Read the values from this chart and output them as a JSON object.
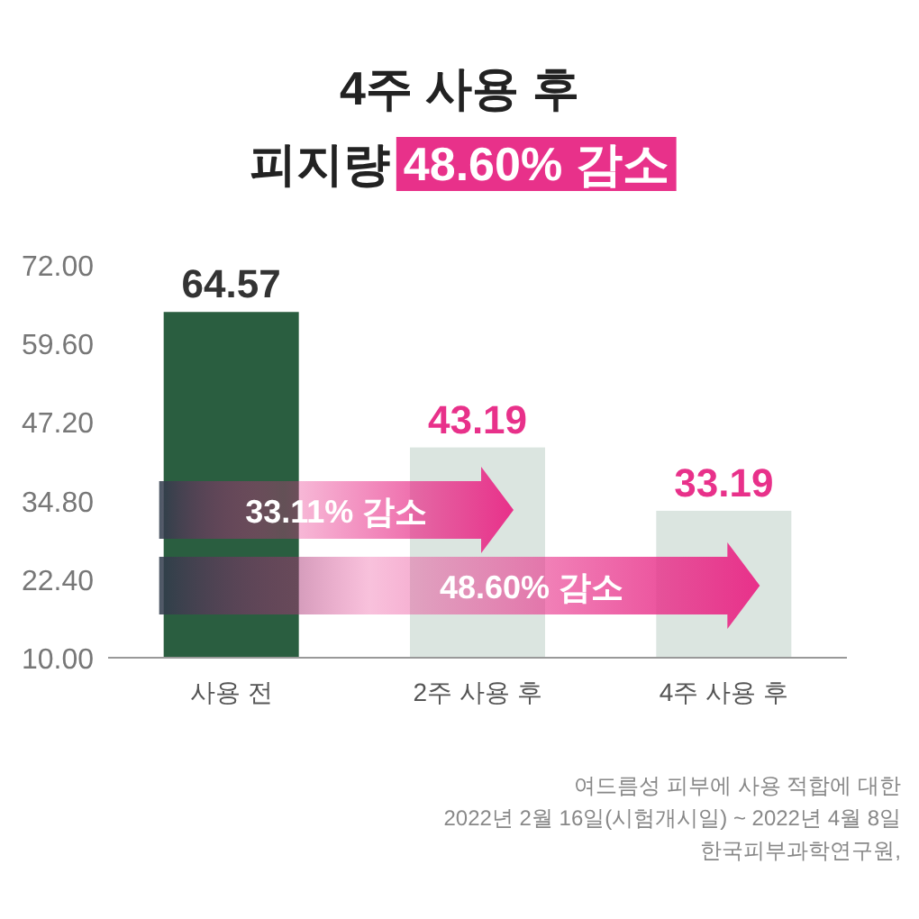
{
  "chart_data": {
    "type": "bar",
    "title": "4주 사용 후",
    "subtitle": "피지량 48.60% 감소",
    "categories": [
      "사용 전",
      "2주 사용 후",
      "4주 사용 후"
    ],
    "values": [
      64.57,
      43.19,
      33.19
    ],
    "colors": [
      "#2a5e40",
      "#dbe5e0",
      "#dbe5e0"
    ],
    "data_labels": true,
    "ylim": [
      10,
      72
    ],
    "yticks": [
      {
        "value": 10,
        "label": "10.00"
      },
      {
        "value": 22.4,
        "label": "22.40"
      },
      {
        "value": 34.8,
        "label": "34.80"
      },
      {
        "value": 47.2,
        "label": "47.20"
      },
      {
        "value": 59.6,
        "label": "59.60"
      },
      {
        "value": 72,
        "label": "72.00"
      }
    ],
    "grid": false,
    "annotations": [
      "33.11% 감소",
      "48.60% 감소",
      "여드름성 피부에 사용 적합에 대한",
      "2022년 2월 16일(시험개시일) ~ 2022년 4월 8일",
      "한국피부과학연구원,"
    ]
  }
}
